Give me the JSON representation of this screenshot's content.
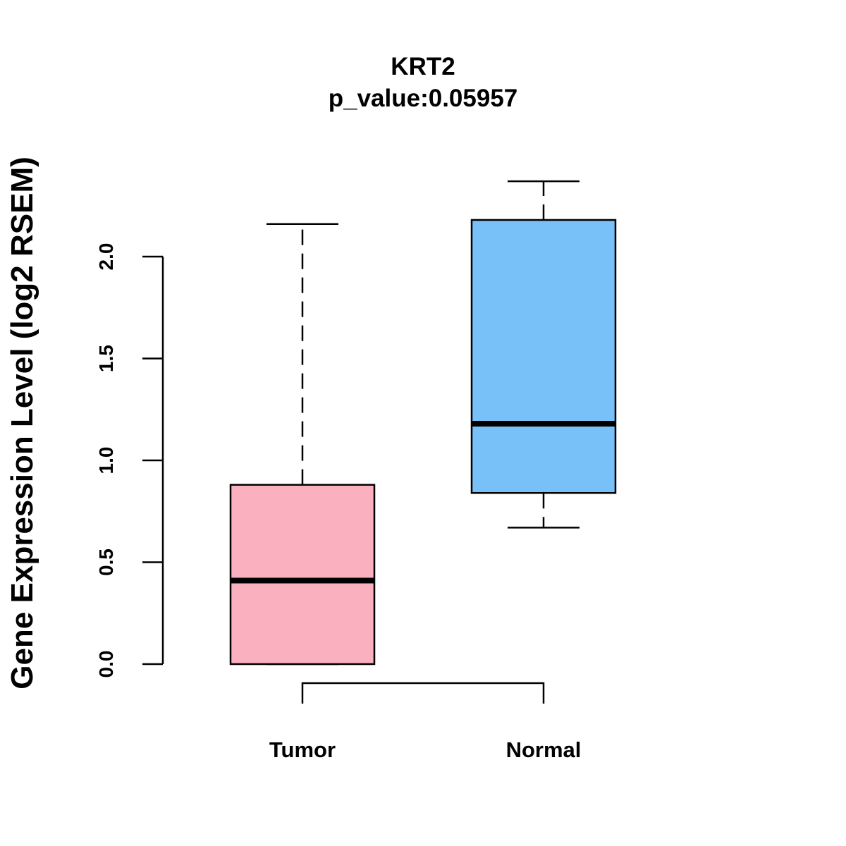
{
  "chart_data": {
    "type": "boxplot",
    "title": "KRT2",
    "subtitle": "p_value:0.05957",
    "xlabel": "",
    "ylabel": "Gene Expression Level (log2 RSEM)",
    "ylim": [
      0,
      2.0
    ],
    "yticks": [
      "0.0",
      "0.5",
      "1.0",
      "1.5",
      "2.0"
    ],
    "categories": [
      "Tumor",
      "Normal"
    ],
    "series": [
      {
        "name": "Tumor",
        "color": "#FBB0C0",
        "min": 0.0,
        "q1": 0.0,
        "median": 0.41,
        "q3": 0.88,
        "max": 2.16
      },
      {
        "name": "Normal",
        "color": "#77C1F8",
        "min": 0.67,
        "q1": 0.84,
        "median": 1.18,
        "q3": 2.18,
        "max": 2.37
      }
    ],
    "comparison_bracket": true
  }
}
